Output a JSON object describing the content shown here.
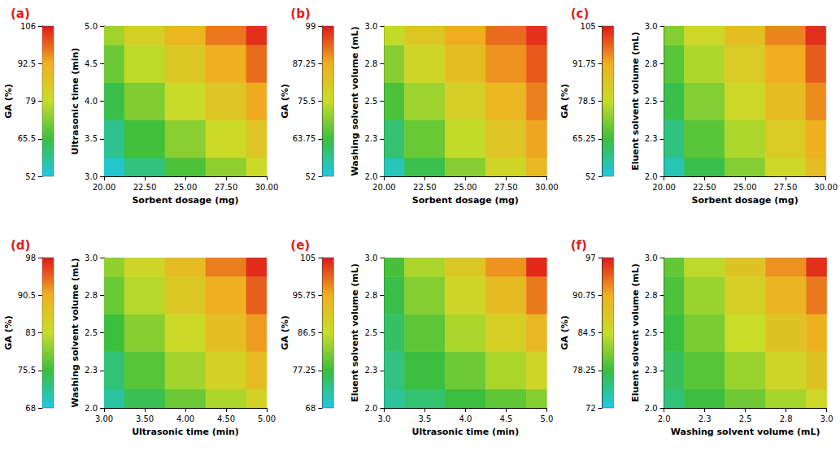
{
  "chart_data": [
    {
      "type": "heatmap",
      "title": "(a)",
      "x_label": "Sorbent dosage (mg)",
      "y_label": "Ultrasonic time (min)",
      "x": [
        20,
        22.5,
        25,
        27.5,
        30
      ],
      "y": [
        3,
        3.5,
        4,
        4.5,
        5
      ],
      "cells": [
        [
          54,
          60.5,
          67,
          73.5,
          80
        ],
        [
          59,
          66,
          73,
          80,
          86.5
        ],
        [
          64.5,
          72,
          79.5,
          86.5,
          93
        ],
        [
          70,
          78,
          85.5,
          92.5,
          98.5
        ],
        [
          75,
          83,
          90.5,
          97.5,
          104
        ]
      ],
      "xlim": [
        20,
        30
      ],
      "xticks": [
        {
          "value": 20,
          "label": "20.00"
        },
        {
          "value": 22.5,
          "label": "22.50"
        },
        {
          "value": 25,
          "label": "25.00"
        },
        {
          "value": 27.5,
          "label": "27.50"
        },
        {
          "value": 30,
          "label": "30.00"
        }
      ],
      "ylim": [
        3,
        5
      ],
      "yticks": [
        {
          "value": 3,
          "label": "3.0"
        },
        {
          "value": 3.5,
          "label": "3.5"
        },
        {
          "value": 4,
          "label": "4.0"
        },
        {
          "value": 4.5,
          "label": "4.5"
        },
        {
          "value": 5,
          "label": "5.0"
        }
      ],
      "colorbar_label": "GA (%)",
      "colorbar_range": [
        52,
        106
      ],
      "colorbar_ticks": [
        52,
        65.5,
        79,
        92.5,
        106
      ],
      "grid": false
    },
    {
      "type": "heatmap",
      "title": "(b)",
      "x_label": "Sorbent dosage (mg)",
      "y_label": "Washing solvent volume (mL)",
      "x": [
        20,
        22.5,
        25,
        27.5,
        30
      ],
      "y": [
        2,
        2.25,
        2.5,
        2.75,
        3
      ],
      "cells": [
        [
          55,
          62.5,
          70,
          77.5,
          85
        ],
        [
          60,
          67.5,
          75,
          82,
          88
        ],
        [
          65,
          72,
          79,
          85.5,
          91
        ],
        [
          70,
          77,
          83.5,
          89.5,
          94
        ],
        [
          75,
          81.5,
          87.5,
          92.5,
          97
        ]
      ],
      "xlim": [
        20,
        30
      ],
      "xticks": [
        {
          "value": 20,
          "label": "20.00"
        },
        {
          "value": 22.5,
          "label": "22.50"
        },
        {
          "value": 25,
          "label": "25.00"
        },
        {
          "value": 27.5,
          "label": "27.50"
        },
        {
          "value": 30,
          "label": "30.00"
        }
      ],
      "ylim": [
        2,
        3
      ],
      "yticks": [
        {
          "value": 2,
          "label": "2.0"
        },
        {
          "value": 2.25,
          "label": "2.3"
        },
        {
          "value": 2.5,
          "label": "2.5"
        },
        {
          "value": 2.75,
          "label": "2.8"
        },
        {
          "value": 3,
          "label": "3.0"
        }
      ],
      "colorbar_label": "GA (%)",
      "colorbar_range": [
        52,
        99
      ],
      "colorbar_ticks": [
        52,
        63.75,
        75.5,
        87.25,
        99
      ],
      "grid": false
    },
    {
      "type": "heatmap",
      "title": "(c)",
      "x_label": "Sorbent dosage (mg)",
      "y_label": "Eluent solvent volume (mL)",
      "x": [
        20,
        22.5,
        25,
        27.5,
        30
      ],
      "y": [
        2,
        2.25,
        2.5,
        2.75,
        3
      ],
      "cells": [
        [
          56,
          64,
          72,
          80,
          88
        ],
        [
          60,
          68,
          76,
          84,
          91.5
        ],
        [
          64,
          72,
          80,
          88,
          95
        ],
        [
          68,
          76,
          84,
          92,
          99
        ],
        [
          72,
          80,
          87.5,
          95.5,
          103
        ]
      ],
      "xlim": [
        20,
        30
      ],
      "xticks": [
        {
          "value": 20,
          "label": "20.00"
        },
        {
          "value": 22.5,
          "label": "22.50"
        },
        {
          "value": 25,
          "label": "25.00"
        },
        {
          "value": 27.5,
          "label": "27.50"
        },
        {
          "value": 30,
          "label": "30.00"
        }
      ],
      "ylim": [
        2,
        3
      ],
      "yticks": [
        {
          "value": 2,
          "label": "2.0"
        },
        {
          "value": 2.25,
          "label": "2.3"
        },
        {
          "value": 2.5,
          "label": "2.5"
        },
        {
          "value": 2.75,
          "label": "2.8"
        },
        {
          "value": 3,
          "label": "3.0"
        }
      ],
      "colorbar_label": "GA (%)",
      "colorbar_range": [
        52,
        105
      ],
      "colorbar_ticks": [
        52,
        65.25,
        78.5,
        91.75,
        105
      ],
      "grid": false
    },
    {
      "type": "heatmap",
      "title": "(d)",
      "x_label": "Ultrasonic time (min)",
      "y_label": "Washing solvent volume (mL)",
      "x": [
        3,
        3.5,
        4,
        4.5,
        5
      ],
      "y": [
        2,
        2.25,
        2.5,
        2.75,
        3
      ],
      "cells": [
        [
          71,
          74.5,
          78,
          81.5,
          85
        ],
        [
          73,
          77,
          81,
          85,
          88.5
        ],
        [
          75.5,
          79.5,
          83.5,
          88,
          91.5
        ],
        [
          78,
          82,
          86.5,
          90.5,
          94.5
        ],
        [
          80,
          84,
          88.5,
          93,
          97
        ]
      ],
      "xlim": [
        3,
        5
      ],
      "xticks": [
        {
          "value": 3,
          "label": "3.00"
        },
        {
          "value": 3.5,
          "label": "3.50"
        },
        {
          "value": 4,
          "label": "4.00"
        },
        {
          "value": 4.5,
          "label": "4.50"
        },
        {
          "value": 5,
          "label": "5.00"
        }
      ],
      "ylim": [
        2,
        3
      ],
      "yticks": [
        {
          "value": 2,
          "label": "2.0"
        },
        {
          "value": 2.25,
          "label": "2.3"
        },
        {
          "value": 2.5,
          "label": "2.5"
        },
        {
          "value": 2.75,
          "label": "2.8"
        },
        {
          "value": 3,
          "label": "3.0"
        }
      ],
      "colorbar_label": "GA (%)",
      "colorbar_range": [
        68,
        98
      ],
      "colorbar_ticks": [
        68,
        75.5,
        83,
        90.5,
        98
      ],
      "grid": false
    },
    {
      "type": "heatmap",
      "title": "(e)",
      "x_label": "Ultrasonic time (min)",
      "y_label": "Eluent solvent volume (mL)",
      "x": [
        3,
        3.5,
        4,
        4.5,
        5
      ],
      "y": [
        2,
        2.25,
        2.5,
        2.75,
        3
      ],
      "cells": [
        [
          72,
          74.5,
          77,
          79.5,
          82
        ],
        [
          73.5,
          77,
          80.5,
          84.5,
          88
        ],
        [
          75,
          79.5,
          84.5,
          89.5,
          94
        ],
        [
          76.5,
          82,
          88,
          93.5,
          99
        ],
        [
          78,
          84.5,
          91,
          97.5,
          104
        ]
      ],
      "xlim": [
        3,
        5
      ],
      "xticks": [
        {
          "value": 3,
          "label": "3.0"
        },
        {
          "value": 3.5,
          "label": "3.5"
        },
        {
          "value": 4,
          "label": "4.0"
        },
        {
          "value": 4.5,
          "label": "4.5"
        },
        {
          "value": 5,
          "label": "5.0"
        }
      ],
      "ylim": [
        2,
        3
      ],
      "yticks": [
        {
          "value": 2,
          "label": "2.0"
        },
        {
          "value": 2.25,
          "label": "2.3"
        },
        {
          "value": 2.5,
          "label": "2.5"
        },
        {
          "value": 2.75,
          "label": "2.8"
        },
        {
          "value": 3,
          "label": "3.0"
        }
      ],
      "colorbar_label": "GA (%)",
      "colorbar_range": [
        68,
        105
      ],
      "colorbar_ticks": [
        68,
        77.25,
        86.5,
        95.75,
        105
      ],
      "grid": false
    },
    {
      "type": "heatmap",
      "title": "(f)",
      "x_label": "Washing solvent volume (mL)",
      "y_label": "Eluent solvent volume (mL)",
      "x": [
        2,
        2.25,
        2.5,
        2.75,
        3
      ],
      "y": [
        2,
        2.25,
        2.5,
        2.75,
        3
      ],
      "cells": [
        [
          76,
          78,
          80.5,
          83,
          85
        ],
        [
          77,
          79.5,
          82.5,
          85.5,
          88
        ],
        [
          78,
          81,
          84.5,
          88,
          90.5
        ],
        [
          79,
          82.5,
          86.5,
          90,
          93
        ],
        [
          80,
          84,
          88,
          92,
          96
        ]
      ],
      "xlim": [
        2,
        3
      ],
      "xticks": [
        {
          "value": 2,
          "label": "2.0"
        },
        {
          "value": 2.25,
          "label": "2.3"
        },
        {
          "value": 2.5,
          "label": "2.5"
        },
        {
          "value": 2.75,
          "label": "2.8"
        },
        {
          "value": 3,
          "label": "3.0"
        }
      ],
      "ylim": [
        2,
        3
      ],
      "yticks": [
        {
          "value": 2,
          "label": "2.0"
        },
        {
          "value": 2.25,
          "label": "2.3"
        },
        {
          "value": 2.5,
          "label": "2.5"
        },
        {
          "value": 2.75,
          "label": "2.8"
        },
        {
          "value": 3,
          "label": "3.0"
        }
      ],
      "colorbar_label": "GA (%)",
      "colorbar_range": [
        72,
        97
      ],
      "colorbar_ticks": [
        72,
        78.25,
        84.5,
        90.75,
        97
      ],
      "grid": false
    }
  ]
}
